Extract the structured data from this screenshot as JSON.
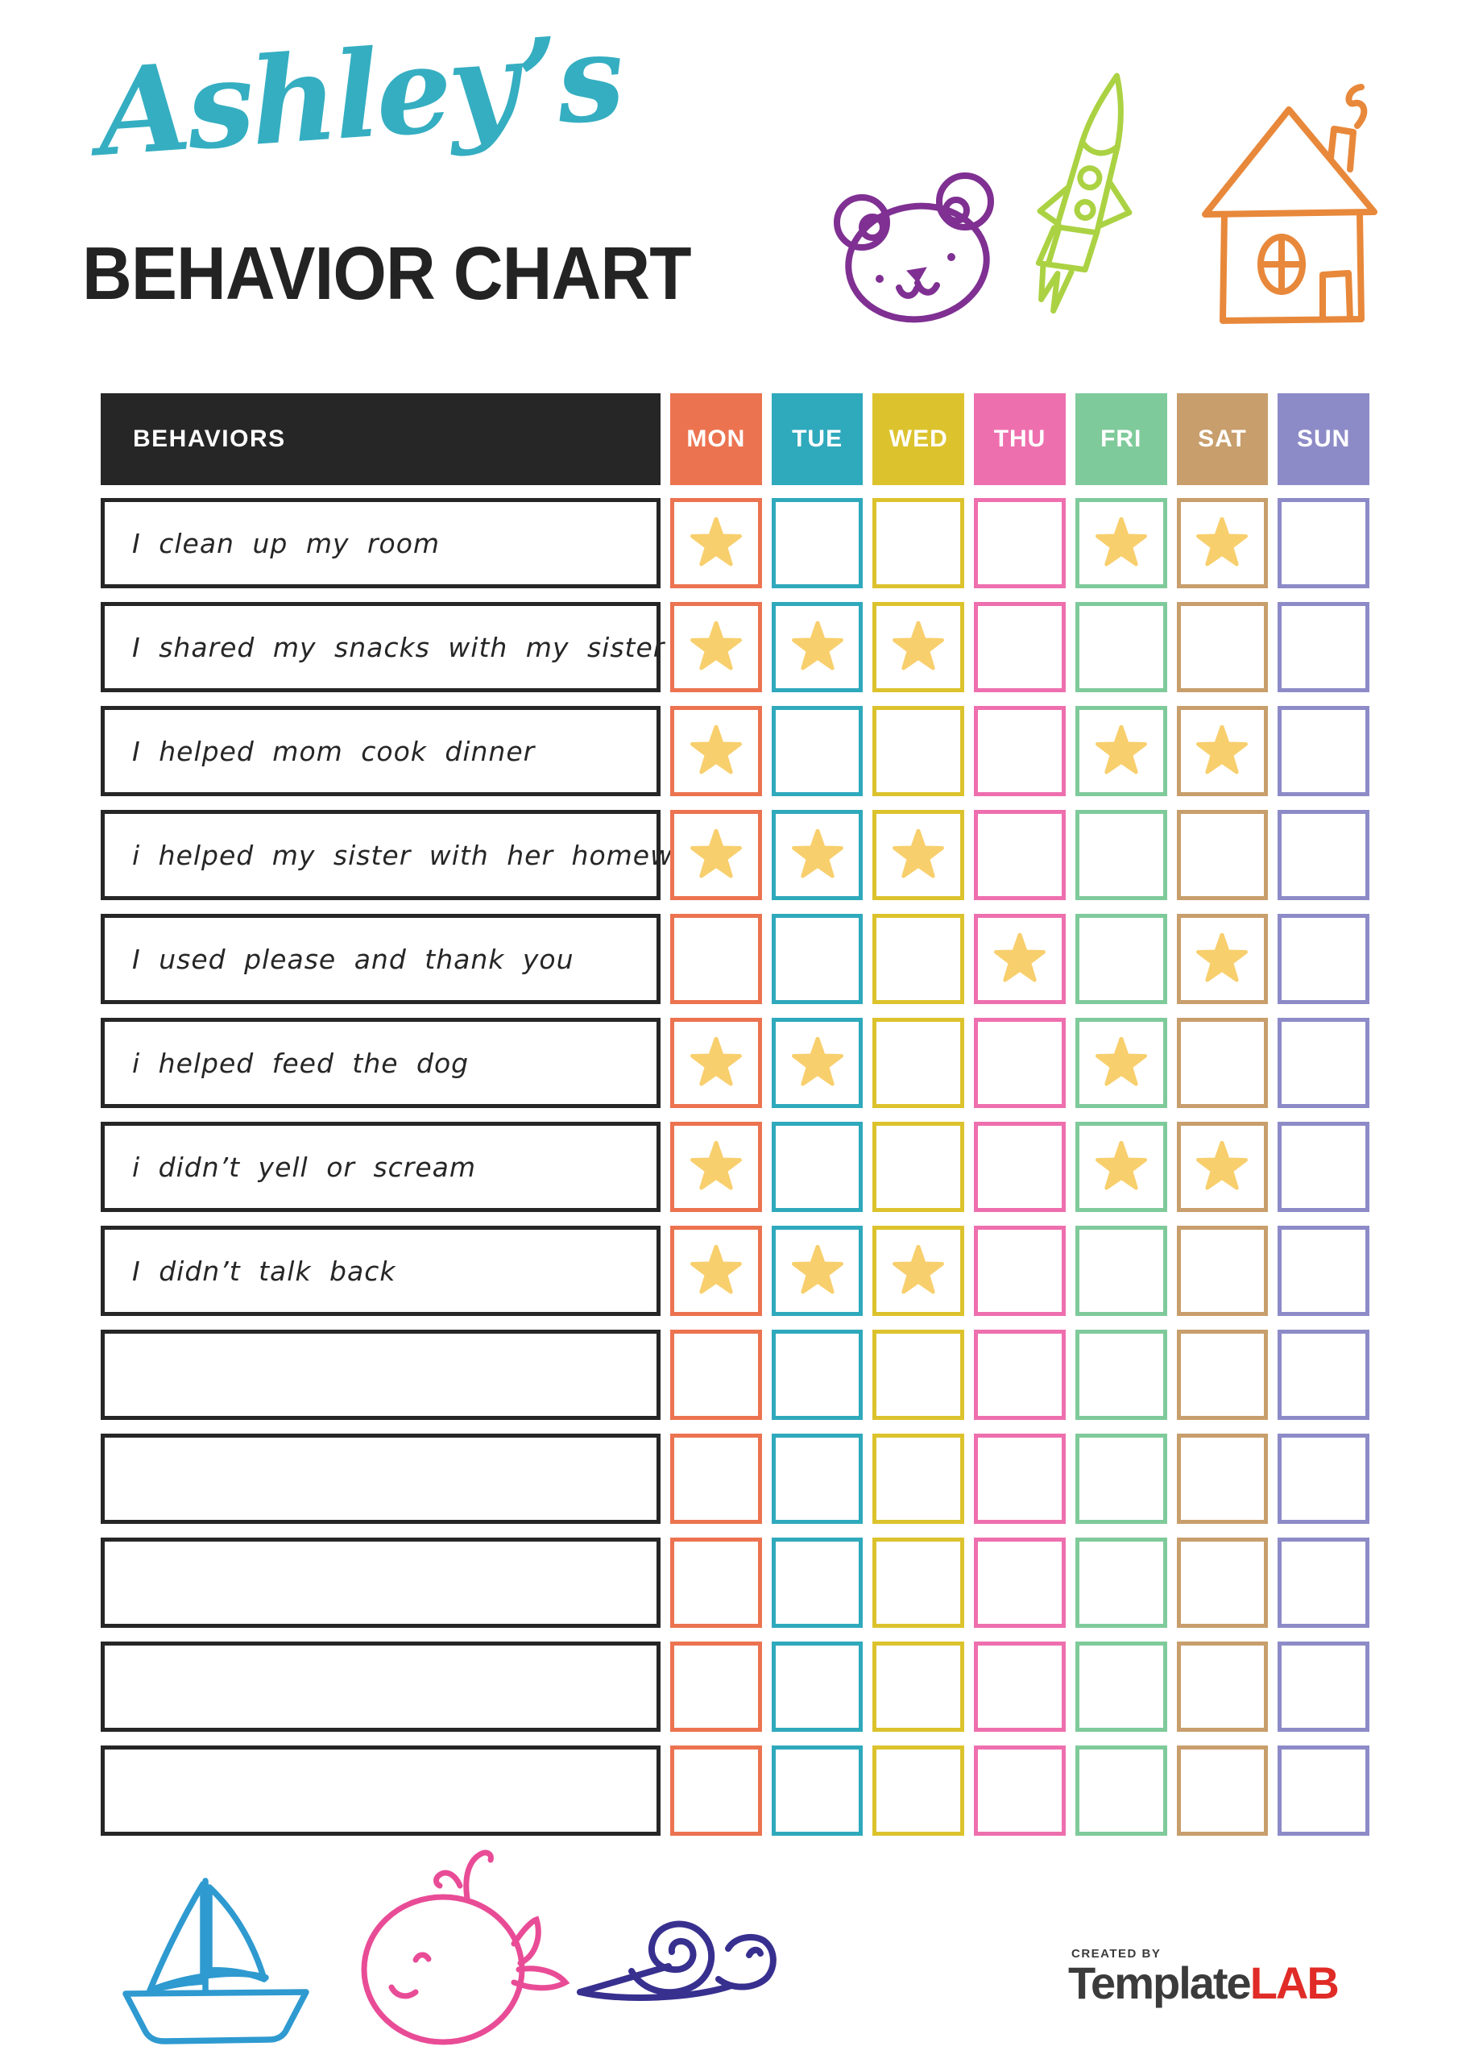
{
  "header": {
    "name_title": "Ashley’s",
    "name_title_color": "#35AEC1",
    "chart_title": "BEHAVIOR CHART"
  },
  "table": {
    "behaviors_header": "BEHAVIORS",
    "behaviors_header_bg": "#262626",
    "star_color": "#F8CF6D",
    "days": [
      {
        "label": "MON",
        "color": "#EC7350"
      },
      {
        "label": "TUE",
        "color": "#2FA9BC"
      },
      {
        "label": "WED",
        "color": "#DCC32E"
      },
      {
        "label": "THU",
        "color": "#EE6FAE"
      },
      {
        "label": "FRI",
        "color": "#7FCA9B"
      },
      {
        "label": "SAT",
        "color": "#C89E6C"
      },
      {
        "label": "SUN",
        "color": "#8D8BC7"
      }
    ],
    "rows": [
      {
        "behavior": "I clean up my room",
        "stars": [
          "MON",
          "FRI",
          "SAT"
        ]
      },
      {
        "behavior": "I shared my snacks with my sister",
        "stars": [
          "MON",
          "TUE",
          "WED"
        ]
      },
      {
        "behavior": "I helped mom cook dinner",
        "stars": [
          "MON",
          "FRI",
          "SAT"
        ]
      },
      {
        "behavior": "i helped my sister with her homework",
        "stars": [
          "MON",
          "TUE",
          "WED"
        ]
      },
      {
        "behavior": "I used please and thank you",
        "stars": [
          "THU",
          "SAT"
        ]
      },
      {
        "behavior": "i helped feed the dog",
        "stars": [
          "MON",
          "TUE",
          "FRI"
        ]
      },
      {
        "behavior": "i didn’t yell or scream",
        "stars": [
          "MON",
          "FRI",
          "SAT"
        ]
      },
      {
        "behavior": "I didn’t talk back",
        "stars": [
          "MON",
          "TUE",
          "WED"
        ]
      },
      {
        "behavior": "",
        "stars": []
      },
      {
        "behavior": "",
        "stars": []
      },
      {
        "behavior": "",
        "stars": []
      },
      {
        "behavior": "",
        "stars": []
      },
      {
        "behavior": "",
        "stars": []
      }
    ]
  },
  "doodles": {
    "top": [
      "bear",
      "rocket",
      "house"
    ],
    "bottom": [
      "sailboat",
      "whale",
      "snail"
    ],
    "bear_color": "#7F3092",
    "rocket_color": "#ABD243",
    "house_color": "#E8883B",
    "sailboat_color": "#2E9AD0",
    "whale_color": "#E94C96",
    "snail_color": "#38308F"
  },
  "footer": {
    "created_by": "CREATED BY",
    "brand_primary": "Template",
    "brand_accent": "LAB",
    "brand_accent_color": "#E02B27"
  }
}
